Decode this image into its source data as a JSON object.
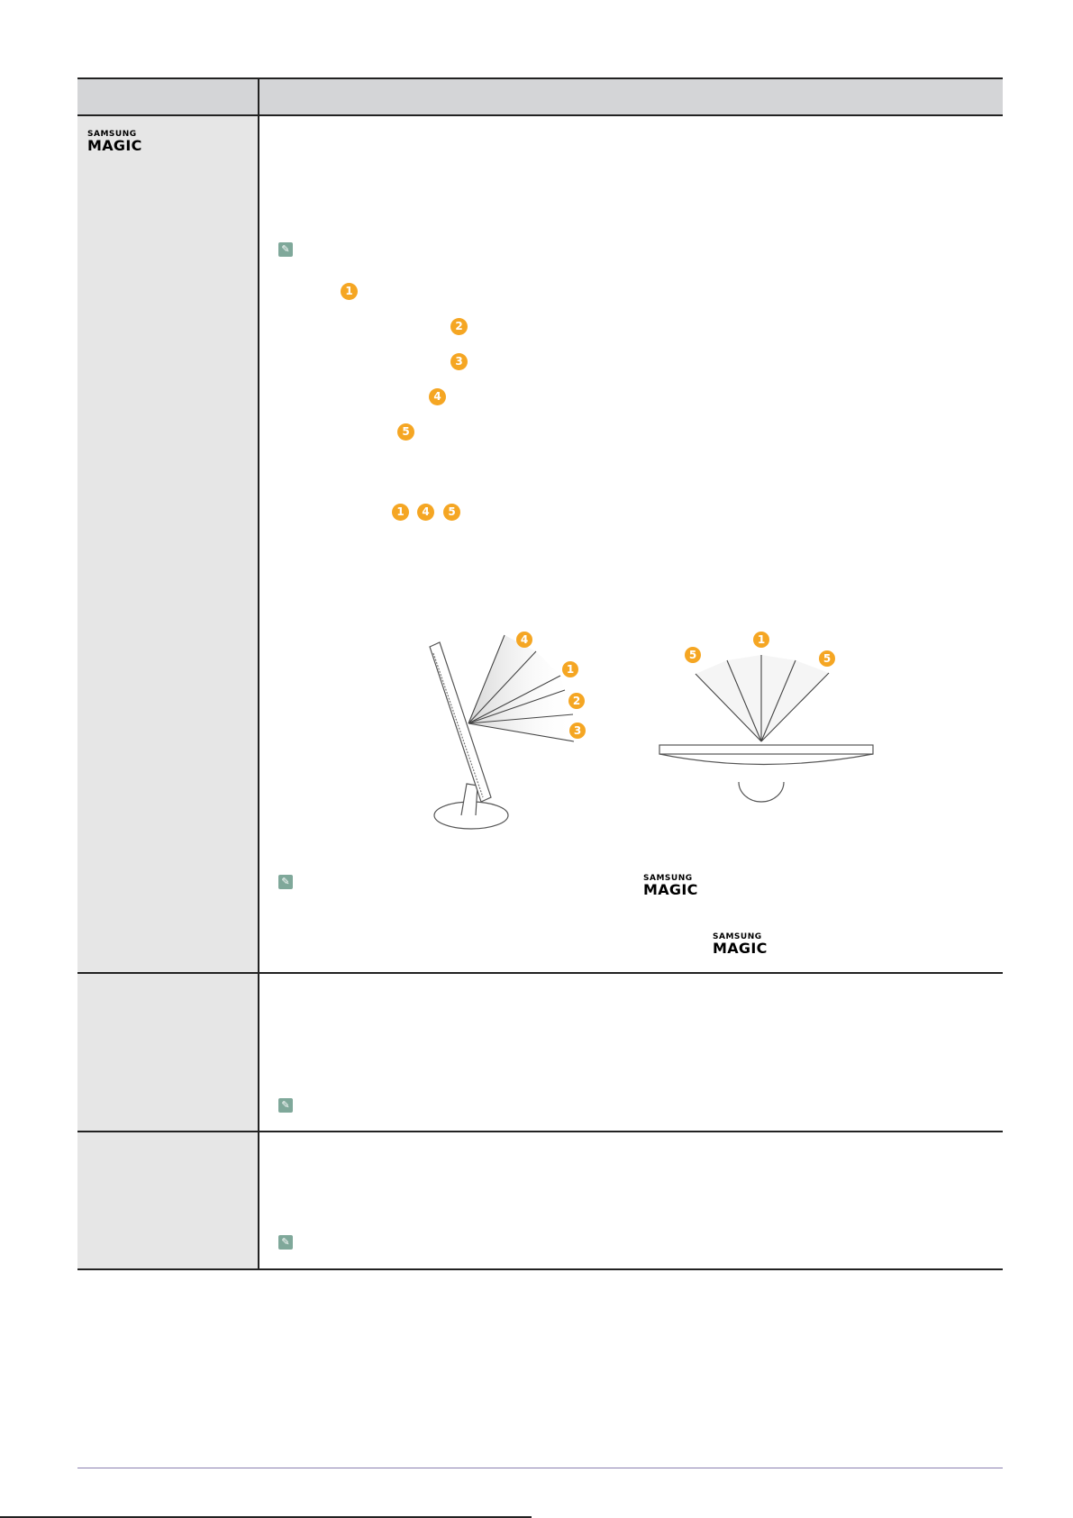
{
  "logo": {
    "line1": "SAMSUNG",
    "line2": "MAGIC"
  },
  "note_icon": "note-pencil-icon",
  "accent_color": "#f5a623",
  "steps": {
    "a": "1",
    "b": "2",
    "c": "3",
    "d": "4",
    "e": "5",
    "f": "1",
    "g": "4",
    "h": "5"
  },
  "diagram": {
    "side_labels": [
      "4",
      "1",
      "2",
      "3"
    ],
    "top_labels": [
      "5",
      "1",
      "5"
    ]
  }
}
